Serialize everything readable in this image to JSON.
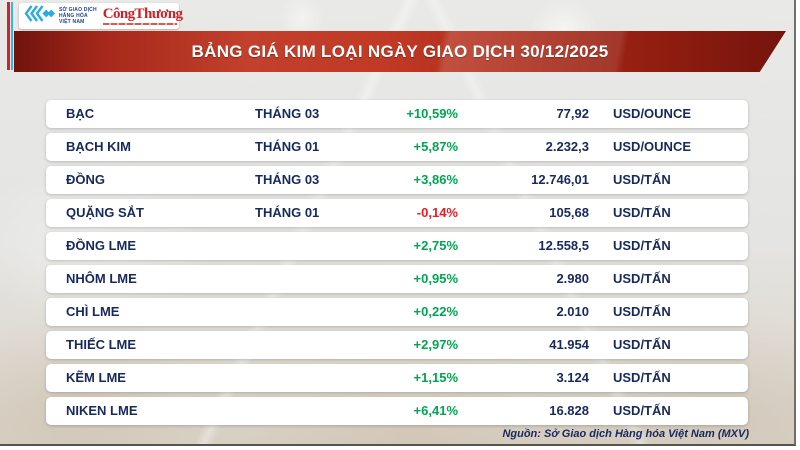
{
  "header": {
    "logo": {
      "org_line1": "SỞ GIAO DỊCH",
      "org_line2": "HÀNG HÓA",
      "org_line3": "VIỆT NAM",
      "brand": "CôngThương"
    },
    "title": "BẢNG GIÁ KIM LOẠI NGÀY GIAO DỊCH 30/12/2025"
  },
  "table": {
    "rows": [
      {
        "name": "BẠC",
        "month": "THÁNG 03",
        "change": "+10,59%",
        "direction": "up",
        "price": "77,92",
        "unit": "USD/OUNCE"
      },
      {
        "name": "BẠCH KIM",
        "month": "THÁNG 01",
        "change": "+5,87%",
        "direction": "up",
        "price": "2.232,3",
        "unit": "USD/OUNCE"
      },
      {
        "name": "ĐỒNG",
        "month": "THÁNG 03",
        "change": "+3,86%",
        "direction": "up",
        "price": "12.746,01",
        "unit": "USD/TẤN"
      },
      {
        "name": "QUẶNG SẮT",
        "month": "THÁNG 01",
        "change": "-0,14%",
        "direction": "down",
        "price": "105,68",
        "unit": "USD/TẤN"
      },
      {
        "name": "ĐỒNG LME",
        "month": "",
        "change": "+2,75%",
        "direction": "up",
        "price": "12.558,5",
        "unit": "USD/TẤN"
      },
      {
        "name": "NHÔM LME",
        "month": "",
        "change": "+0,95%",
        "direction": "up",
        "price": "2.980",
        "unit": "USD/TẤN"
      },
      {
        "name": "CHÌ LME",
        "month": "",
        "change": "+0,22%",
        "direction": "up",
        "price": "2.010",
        "unit": "USD/TẤN"
      },
      {
        "name": "THIẾC LME",
        "month": "",
        "change": "+2,97%",
        "direction": "up",
        "price": "41.954",
        "unit": "USD/TẤN"
      },
      {
        "name": "KẼM LME",
        "month": "",
        "change": "+1,15%",
        "direction": "up",
        "price": "3.124",
        "unit": "USD/TẤN"
      },
      {
        "name": "NIKEN LME",
        "month": "",
        "change": "+6,41%",
        "direction": "up",
        "price": "16.828",
        "unit": "USD/TẤN"
      }
    ]
  },
  "footer": {
    "source": "Nguồn: Sở Giao dịch Hàng hóa Việt Nam (MXV)"
  },
  "colors": {
    "positive": "#00a651",
    "negative": "#ed1c24",
    "navy_text": "#17295d",
    "banner_red": "#b22c1b",
    "stripe_red": "#c4272e",
    "stripe_blue": "#35b4e8",
    "brand_red": "#d21f26"
  },
  "chart_data": {
    "type": "table",
    "title": "BẢNG GIÁ KIM LOẠI NGÀY GIAO DỊCH 30/12/2025",
    "source": "Nguồn: Sở Giao dịch Hàng hóa Việt Nam (MXV)",
    "rows": [
      {
        "name": "BẠC",
        "contract_month": "THÁNG 03",
        "change_pct": 10.59,
        "price": 77.92,
        "unit": "USD/OUNCE"
      },
      {
        "name": "BẠCH KIM",
        "contract_month": "THÁNG 01",
        "change_pct": 5.87,
        "price": 2232.3,
        "unit": "USD/OUNCE"
      },
      {
        "name": "ĐỒNG",
        "contract_month": "THÁNG 03",
        "change_pct": 3.86,
        "price": 12746.01,
        "unit": "USD/TẤN"
      },
      {
        "name": "QUẶNG SẮT",
        "contract_month": "THÁNG 01",
        "change_pct": -0.14,
        "price": 105.68,
        "unit": "USD/TẤN"
      },
      {
        "name": "ĐỒNG LME",
        "contract_month": "",
        "change_pct": 2.75,
        "price": 12558.5,
        "unit": "USD/TẤN"
      },
      {
        "name": "NHÔM LME",
        "contract_month": "",
        "change_pct": 0.95,
        "price": 2980,
        "unit": "USD/TẤN"
      },
      {
        "name": "CHÌ LME",
        "contract_month": "",
        "change_pct": 0.22,
        "price": 2010,
        "unit": "USD/TẤN"
      },
      {
        "name": "THIẾC LME",
        "contract_month": "",
        "change_pct": 2.97,
        "price": 41954,
        "unit": "USD/TẤN"
      },
      {
        "name": "KẼM LME",
        "contract_month": "",
        "change_pct": 1.15,
        "price": 3124,
        "unit": "USD/TẤN"
      },
      {
        "name": "NIKEN LME",
        "contract_month": "",
        "change_pct": 6.41,
        "price": 16828,
        "unit": "USD/TẤN"
      }
    ]
  }
}
